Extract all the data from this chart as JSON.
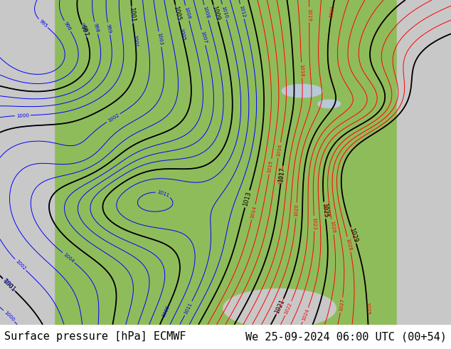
{
  "title": "",
  "footer_left": "Surface pressure [hPa] ECMWF",
  "footer_right": "We 25-09-2024 06:00 UTC (00+54)",
  "footer_fontsize": 11,
  "fig_width": 6.34,
  "fig_height": 4.9,
  "dpi": 100,
  "bg_color": "#ffffff",
  "land_color_green": "#8fbc5a",
  "land_color_green2": "#a8c87a",
  "ocean_color": "#c8c8c8",
  "contour_blue": "#0000ff",
  "contour_red": "#ff0000",
  "contour_black": "#000000",
  "footer_bg": "#d0d0d0",
  "map_bg": "#9ecb6e"
}
